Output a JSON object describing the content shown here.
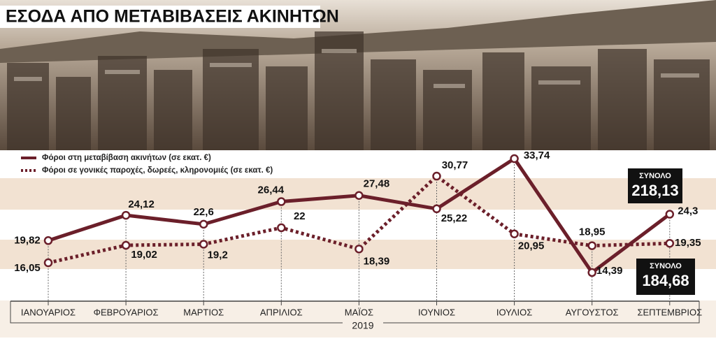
{
  "chart_data": {
    "type": "line",
    "title": "ΕΣΟΔΑ ΑΠΟ ΜΕΤΑΒΙΒΑΣΕΙΣ ΑΚΙΝΗΤΩΝ",
    "x_label": "2019",
    "categories": [
      "ΙΑΝΟΥΑΡΙΟΣ",
      "ΦΕΒΡΟΥΑΡΙΟΣ",
      "ΜΑΡΤΙΟΣ",
      "ΑΠΡΙΛΙΟΣ",
      "ΜΑΪΟΣ",
      "ΙΟΥΝΙΟΣ",
      "ΙΟΥΛΙΟΣ",
      "ΑΥΓΟΥΣΤΟΣ",
      "ΣΕΠΤΕΜΒΡΙΟΣ"
    ],
    "ylim": [
      10,
      36
    ],
    "series": [
      {
        "name": "Φόροι στη μεταβίβαση ακινήτων (σε εκατ. €)",
        "color": "#6b1f2a",
        "style": "solid",
        "values": [
          19.82,
          24.12,
          22.6,
          26.44,
          27.48,
          25.22,
          33.74,
          14.39,
          24.3
        ],
        "value_labels": [
          "19,82",
          "24,12",
          "22,6",
          "26,44",
          "27,48",
          "25,22",
          "33,74",
          "14,39",
          "24,3"
        ],
        "total_title": "ΣΥΝΟΛΟ",
        "total": 218.13,
        "total_label": "218,13"
      },
      {
        "name": "Φόροι σε γονικές παροχές, δωρεές, κληρονομιές (σε εκατ. €)",
        "color": "#6b1f2a",
        "style": "dotted",
        "values": [
          16.05,
          19.02,
          19.2,
          22,
          18.39,
          30.77,
          20.95,
          18.95,
          19.35
        ],
        "value_labels": [
          "16,05",
          "19,02",
          "19,2",
          "22",
          "18,39",
          "30,77",
          "20,95",
          "18,95",
          "19,35"
        ],
        "total_title": "ΣΥΝΟΛΟ",
        "total": 184.68,
        "total_label": "184,68"
      }
    ]
  }
}
